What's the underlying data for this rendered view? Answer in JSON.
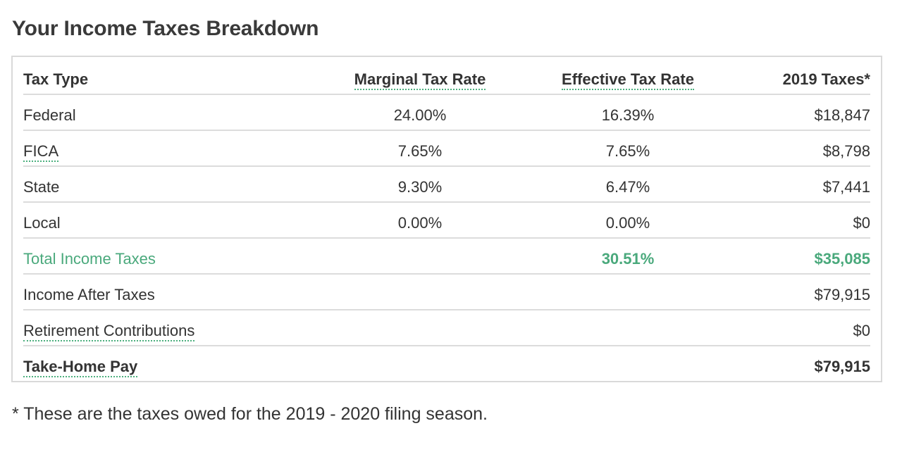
{
  "title": "Your Income Taxes Breakdown",
  "colors": {
    "accent_green": "#4aa97c",
    "dotted_underline": "#4db07f",
    "text": "#333333",
    "border": "#d9d9d9"
  },
  "table": {
    "headers": {
      "type": "Tax Type",
      "marginal": "Marginal Tax Rate",
      "effective": "Effective Tax Rate",
      "taxes": "2019 Taxes*"
    },
    "rows": [
      {
        "type": "Federal",
        "marginal": "24.00%",
        "effective": "16.39%",
        "taxes": "$18,847"
      },
      {
        "type": "FICA",
        "marginal": "7.65%",
        "effective": "7.65%",
        "taxes": "$8,798"
      },
      {
        "type": "State",
        "marginal": "9.30%",
        "effective": "6.47%",
        "taxes": "$7,441"
      },
      {
        "type": "Local",
        "marginal": "0.00%",
        "effective": "0.00%",
        "taxes": "$0"
      },
      {
        "type": "Total Income Taxes",
        "marginal": "",
        "effective": "30.51%",
        "taxes": "$35,085"
      },
      {
        "type": "Income After Taxes",
        "marginal": "",
        "effective": "",
        "taxes": "$79,915"
      },
      {
        "type": "Retirement Contributions",
        "marginal": "",
        "effective": "",
        "taxes": "$0"
      },
      {
        "type": "Take-Home Pay",
        "marginal": "",
        "effective": "",
        "taxes": "$79,915"
      }
    ]
  },
  "footnote": "* These are the taxes owed for the 2019 - 2020 filing season."
}
